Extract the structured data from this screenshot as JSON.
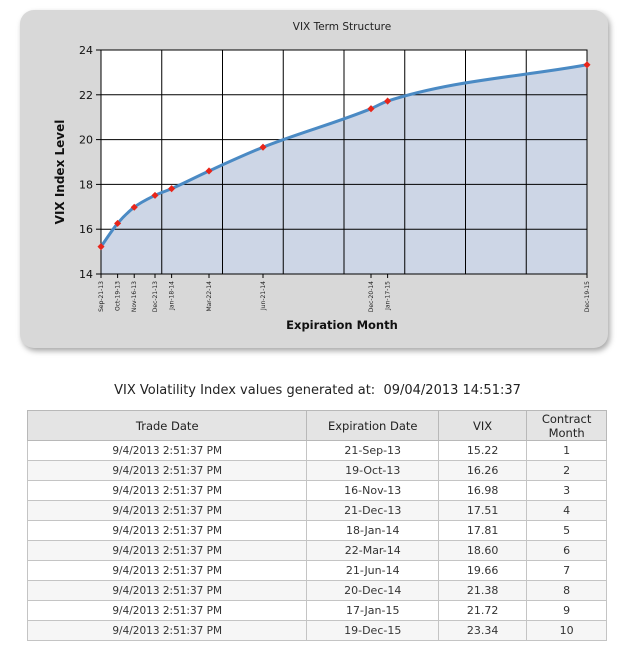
{
  "chart_data": {
    "type": "area",
    "title": "VIX Term Structure",
    "xlabel": "Expiration Month",
    "ylabel": "VIX Index Level",
    "ylim": [
      14,
      24
    ],
    "yticks": [
      14,
      16,
      18,
      20,
      22,
      24
    ],
    "grid": true,
    "x": [
      "Sep-21-13",
      "Oct-19-13",
      "Nov-16-13",
      "Dec-21-13",
      "Jan-18-14",
      "Mar-22-14",
      "Jun-21-14",
      "Dec-20-14",
      "Jan-17-15",
      "Dec-19-15"
    ],
    "x_day_offset": [
      0,
      28,
      56,
      91,
      119,
      182,
      273,
      455,
      483,
      819
    ],
    "values": [
      15.22,
      16.26,
      16.98,
      17.51,
      17.81,
      18.6,
      19.66,
      21.38,
      21.72,
      23.34
    ],
    "colors": {
      "line": "#4a8ac4",
      "fill": "#cdd6e6",
      "marker": "#e8251a",
      "plot_bg": "#ffffff"
    }
  },
  "caption": {
    "prefix": "VIX Volatility Index values generated at:",
    "timestamp": "09/04/2013 14:51:37"
  },
  "table": {
    "headers": {
      "trade_date": "Trade Date",
      "expiration_date": "Expiration Date",
      "vix": "VIX",
      "contract_month": "Contract Month"
    },
    "rows": [
      {
        "trade_date": "9/4/2013 2:51:37 PM",
        "expiration_date": "21-Sep-13",
        "vix": "15.22",
        "month": "1"
      },
      {
        "trade_date": "9/4/2013 2:51:37 PM",
        "expiration_date": "19-Oct-13",
        "vix": "16.26",
        "month": "2"
      },
      {
        "trade_date": "9/4/2013 2:51:37 PM",
        "expiration_date": "16-Nov-13",
        "vix": "16.98",
        "month": "3"
      },
      {
        "trade_date": "9/4/2013 2:51:37 PM",
        "expiration_date": "21-Dec-13",
        "vix": "17.51",
        "month": "4"
      },
      {
        "trade_date": "9/4/2013 2:51:37 PM",
        "expiration_date": "18-Jan-14",
        "vix": "17.81",
        "month": "5"
      },
      {
        "trade_date": "9/4/2013 2:51:37 PM",
        "expiration_date": "22-Mar-14",
        "vix": "18.60",
        "month": "6"
      },
      {
        "trade_date": "9/4/2013 2:51:37 PM",
        "expiration_date": "21-Jun-14",
        "vix": "19.66",
        "month": "7"
      },
      {
        "trade_date": "9/4/2013 2:51:37 PM",
        "expiration_date": "20-Dec-14",
        "vix": "21.38",
        "month": "8"
      },
      {
        "trade_date": "9/4/2013 2:51:37 PM",
        "expiration_date": "17-Jan-15",
        "vix": "21.72",
        "month": "9"
      },
      {
        "trade_date": "9/4/2013 2:51:37 PM",
        "expiration_date": "19-Dec-15",
        "vix": "23.34",
        "month": "10"
      }
    ]
  }
}
